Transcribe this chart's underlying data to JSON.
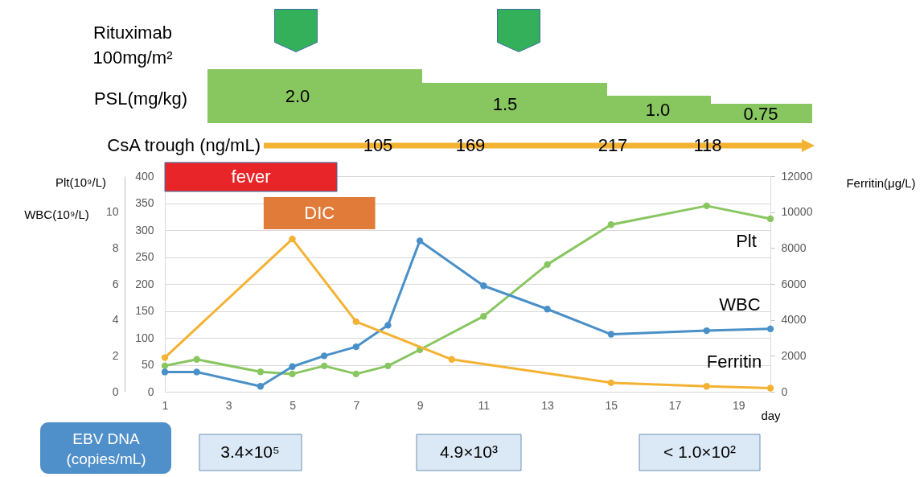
{
  "chart_data": {
    "type": "line",
    "xlabel": "day",
    "ylabel": "Plt(10⁹/L)",
    "y2label": "Ferritin(μg/L)",
    "y3label": "WBC(10⁹/L)",
    "xlim": [
      1,
      20
    ],
    "xticks": [
      1,
      3,
      5,
      7,
      9,
      11,
      13,
      15,
      17,
      19
    ],
    "ylim": [
      0,
      400
    ],
    "yticks": [
      0,
      50,
      100,
      150,
      200,
      250,
      300,
      350,
      400
    ],
    "y2lim": [
      0,
      12000
    ],
    "y2ticks": [
      0,
      2000,
      4000,
      6000,
      8000,
      10000,
      12000
    ],
    "y3lim": [
      0,
      12
    ],
    "y3ticks": [
      0,
      2,
      4,
      6,
      8,
      10
    ],
    "grid": "y",
    "marker": "circle",
    "series": [
      {
        "name": "Plt",
        "color": "#88c660",
        "x": [
          1,
          2,
          4,
          5,
          6,
          7,
          8,
          9,
          11,
          13,
          15,
          18,
          20
        ],
        "values": [
          48,
          60,
          37,
          33,
          48,
          33,
          48,
          78,
          140,
          236,
          310,
          345,
          321
        ]
      },
      {
        "name": "WBC",
        "color": "#4a90c8",
        "axis": "y3",
        "x": [
          1,
          2,
          4,
          5,
          6,
          7,
          8,
          9,
          11,
          13,
          15,
          18,
          20
        ],
        "values": [
          1.1,
          1.1,
          0.3,
          1.4,
          2.0,
          2.5,
          3.7,
          8.4,
          5.9,
          4.6,
          3.2,
          3.4,
          3.5
        ]
      },
      {
        "name": "Ferritin",
        "color": "#f4b233",
        "axis": "y2",
        "x": [
          1,
          5,
          7,
          10,
          15,
          18,
          20
        ],
        "values": [
          1900,
          8500,
          3900,
          1800,
          500,
          300,
          200
        ]
      }
    ],
    "bands": [
      {
        "axis": "x",
        "from": 1,
        "to": 6.4,
        "label": "fever",
        "color": "#e8262a"
      },
      {
        "axis": "x",
        "from": 4.1,
        "to": 7.6,
        "label": "DIC",
        "color": "#e07b39"
      }
    ],
    "annotations": [
      "Rituximab\n100mg/m²",
      "PSL(mg/kg)",
      "2.0",
      "1.5",
      "1.0",
      "0.75",
      "CsA trough (ng/mL)",
      "105",
      "169",
      "217",
      "118",
      "EBV DNA\n(copies/mL)",
      "3.4×10⁵",
      "4.9×10³",
      "< 1.0×10²"
    ]
  }
}
